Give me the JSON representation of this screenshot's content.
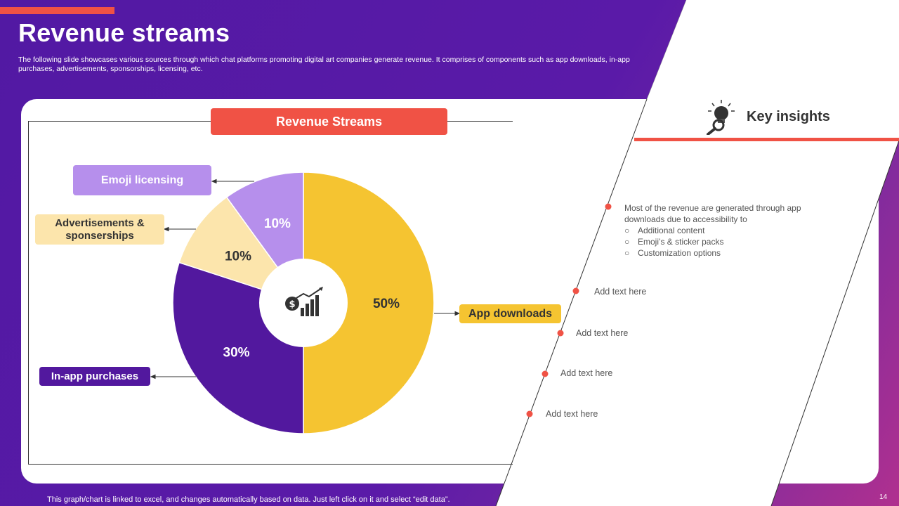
{
  "slide": {
    "title": "Revenue streams",
    "subtitle": "The following slide showcases various sources through which chat platforms promoting digital art companies generate revenue. It comprises of components such as app downloads, in-app purchases, advertisements, sponsorships, licensing, etc.",
    "footer": "This graph/chart is linked to excel, and changes automatically based on data. Just left click on it and select “edit data”.",
    "page_number": "14",
    "colors": {
      "accent": "#f05245",
      "purple": "#52189e",
      "yellow": "#f5c431",
      "lavender": "#b68fec",
      "cream": "#fce5ac"
    }
  },
  "chart_data": {
    "type": "pie",
    "title": "Revenue Streams",
    "center_icon": "money-growth-chart-icon",
    "categories": [
      "App downloads",
      "In-app purchases",
      "Advertisements & sponserships",
      "Emoji licensing"
    ],
    "values": [
      50,
      30,
      10,
      10
    ],
    "labels": [
      "50%",
      "30%",
      "10%",
      "10%"
    ],
    "colors": [
      "#f5c431",
      "#52189e",
      "#fce5ac",
      "#b68fec"
    ]
  },
  "legend": {
    "emoji": "Emoji licensing",
    "ads_line1": "Advertisements &",
    "ads_line2": "sponserships",
    "inapp": "In-app purchases",
    "app": "App downloads"
  },
  "insights": {
    "title": "Key insights",
    "icon": "bulb-magnifier-icon",
    "main_line1": "Most of the revenue  are generated  through app",
    "main_line2": "downloads  due  to accessibility to",
    "bullets": [
      "Additional content",
      "Emoji’s & sticker packs",
      "Customization options"
    ],
    "items": [
      "Add text here",
      "Add text here",
      "Add text here",
      "Add text here"
    ]
  }
}
